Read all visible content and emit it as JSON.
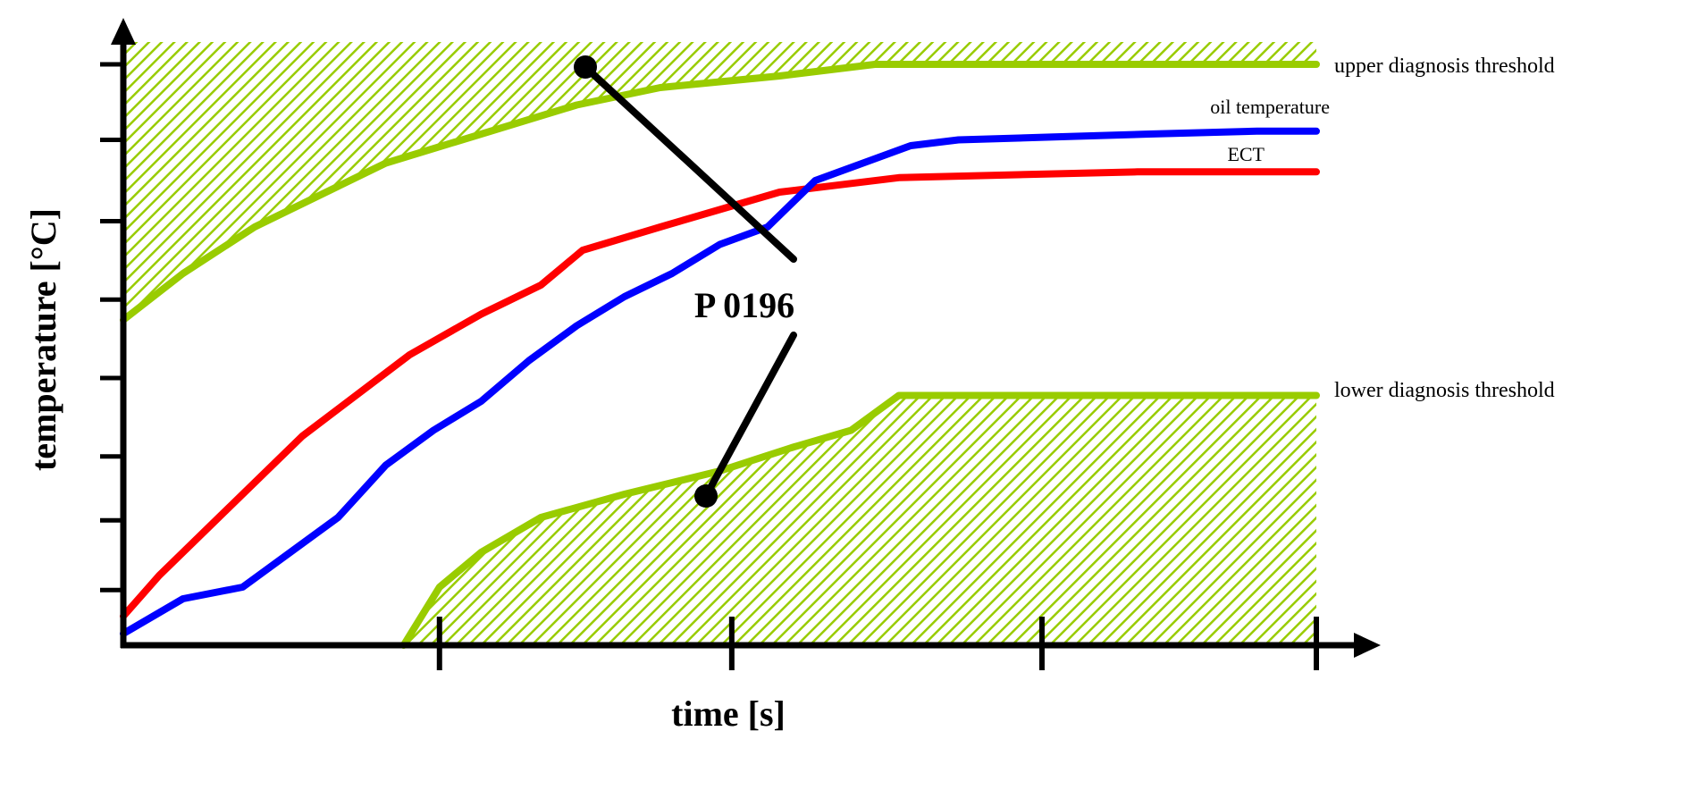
{
  "chart_data": {
    "type": "line",
    "title": "",
    "xlabel": "time [s]",
    "ylabel": "temperature [°C]",
    "xlim": [
      0,
      1
    ],
    "ylim": [
      0,
      1
    ],
    "grid": false,
    "x_ticks": [
      0.265,
      0.51,
      0.77,
      1.0
    ],
    "y_ticks": [
      0.095,
      0.215,
      0.325,
      0.46,
      0.595,
      0.73,
      0.87,
      1.0
    ],
    "series": [
      {
        "name": "oil temperature",
        "color": "#0000ff",
        "points": [
          [
            0,
            0.02
          ],
          [
            0.05,
            0.08
          ],
          [
            0.1,
            0.1
          ],
          [
            0.14,
            0.16
          ],
          [
            0.18,
            0.22
          ],
          [
            0.22,
            0.31
          ],
          [
            0.26,
            0.37
          ],
          [
            0.3,
            0.42
          ],
          [
            0.34,
            0.49
          ],
          [
            0.38,
            0.55
          ],
          [
            0.42,
            0.6
          ],
          [
            0.46,
            0.64
          ],
          [
            0.5,
            0.69
          ],
          [
            0.54,
            0.72
          ],
          [
            0.58,
            0.8
          ],
          [
            0.62,
            0.83
          ],
          [
            0.66,
            0.86
          ],
          [
            0.7,
            0.87
          ],
          [
            0.78,
            0.875
          ],
          [
            0.86,
            0.88
          ],
          [
            0.95,
            0.885
          ],
          [
            1.0,
            0.885
          ]
        ]
      },
      {
        "name": "ECT",
        "color": "#ff0000",
        "points": [
          [
            0,
            0.05
          ],
          [
            0.03,
            0.12
          ],
          [
            0.08,
            0.22
          ],
          [
            0.15,
            0.36
          ],
          [
            0.24,
            0.5
          ],
          [
            0.3,
            0.57
          ],
          [
            0.35,
            0.62
          ],
          [
            0.385,
            0.68
          ],
          [
            0.45,
            0.72
          ],
          [
            0.55,
            0.78
          ],
          [
            0.65,
            0.805
          ],
          [
            0.75,
            0.81
          ],
          [
            0.85,
            0.815
          ],
          [
            0.95,
            0.815
          ],
          [
            1.0,
            0.815
          ]
        ]
      },
      {
        "name": "upper diagnosis threshold",
        "color": "#99cc00",
        "points": [
          [
            0,
            0.56
          ],
          [
            0.05,
            0.64
          ],
          [
            0.11,
            0.72
          ],
          [
            0.18,
            0.79
          ],
          [
            0.22,
            0.83
          ],
          [
            0.3,
            0.88
          ],
          [
            0.38,
            0.93
          ],
          [
            0.45,
            0.96
          ],
          [
            0.55,
            0.98
          ],
          [
            0.63,
            1.0
          ],
          [
            0.75,
            1.0
          ],
          [
            0.9,
            1.0
          ],
          [
            1.0,
            1.0
          ]
        ]
      },
      {
        "name": "lower diagnosis threshold",
        "color": "#99cc00",
        "points": [
          [
            0.235,
            0.0
          ],
          [
            0.265,
            0.1
          ],
          [
            0.3,
            0.16
          ],
          [
            0.35,
            0.22
          ],
          [
            0.42,
            0.26
          ],
          [
            0.5,
            0.3
          ],
          [
            0.56,
            0.34
          ],
          [
            0.61,
            0.37
          ],
          [
            0.65,
            0.43
          ],
          [
            0.7,
            0.43
          ],
          [
            0.8,
            0.43
          ],
          [
            1.0,
            0.43
          ]
        ]
      }
    ],
    "annotations": [
      {
        "text": "P 0196"
      }
    ]
  }
}
